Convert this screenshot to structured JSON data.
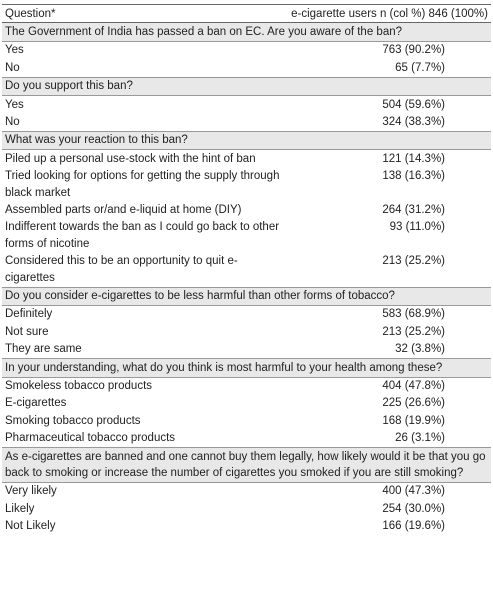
{
  "table": {
    "header": [
      "Question*",
      "e-cigarette users n (col %) 846 (100%)"
    ],
    "sections": [
      {
        "question": "The Government of India has passed a ban on EC. Are you aware of the ban?",
        "rows": [
          [
            "Yes",
            "763 (90.2%)"
          ],
          [
            "No",
            "65 (7.7%)"
          ]
        ]
      },
      {
        "question": "Do you support this ban?",
        "rows": [
          [
            "Yes",
            "504 (59.6%)"
          ],
          [
            "No",
            "324 (38.3%)"
          ]
        ]
      },
      {
        "question": "What was your reaction to this ban?",
        "rows": [
          [
            "Piled up a personal use-stock with the hint of ban",
            "121 (14.3%)"
          ],
          [
            "Tried looking for options for getting the supply through black market",
            "138 (16.3%)"
          ],
          [
            "Assembled parts or/and e-liquid at home (DIY)",
            "264 (31.2%)"
          ],
          [
            "Indifferent towards the ban as I could go back to other forms of nicotine",
            "93 (11.0%)"
          ],
          [
            "Considered this to be an opportunity to quit e-cigarettes",
            "213 (25.2%)"
          ]
        ]
      },
      {
        "question": "Do you consider e-cigarettes to be less harmful than other forms of tobacco?",
        "rows": [
          [
            "Definitely",
            "583 (68.9%)"
          ],
          [
            "Not sure",
            "213 (25.2%)"
          ],
          [
            "They are same",
            "32 (3.8%)"
          ]
        ]
      },
      {
        "question": "In your understanding, what do you think is most harmful to your health among these?",
        "rows": [
          [
            "Smokeless tobacco products",
            "404 (47.8%)"
          ],
          [
            "E-cigarettes",
            "225 (26.6%)"
          ],
          [
            "Smoking tobacco products",
            "168 (19.9%)"
          ],
          [
            "Pharmaceutical tobacco products",
            "26 (3.1%)"
          ]
        ]
      },
      {
        "question": "As e-cigarettes are banned and one cannot buy them legally, how likely would it be that you go back to smoking or increase the number of cigarettes you smoked if you are still smoking?",
        "rows": [
          [
            "Very likely",
            "400 (47.3%)"
          ],
          [
            "Likely",
            "254 (30.0%)"
          ],
          [
            "Not Likely",
            "166 (19.6%)"
          ]
        ]
      }
    ]
  }
}
